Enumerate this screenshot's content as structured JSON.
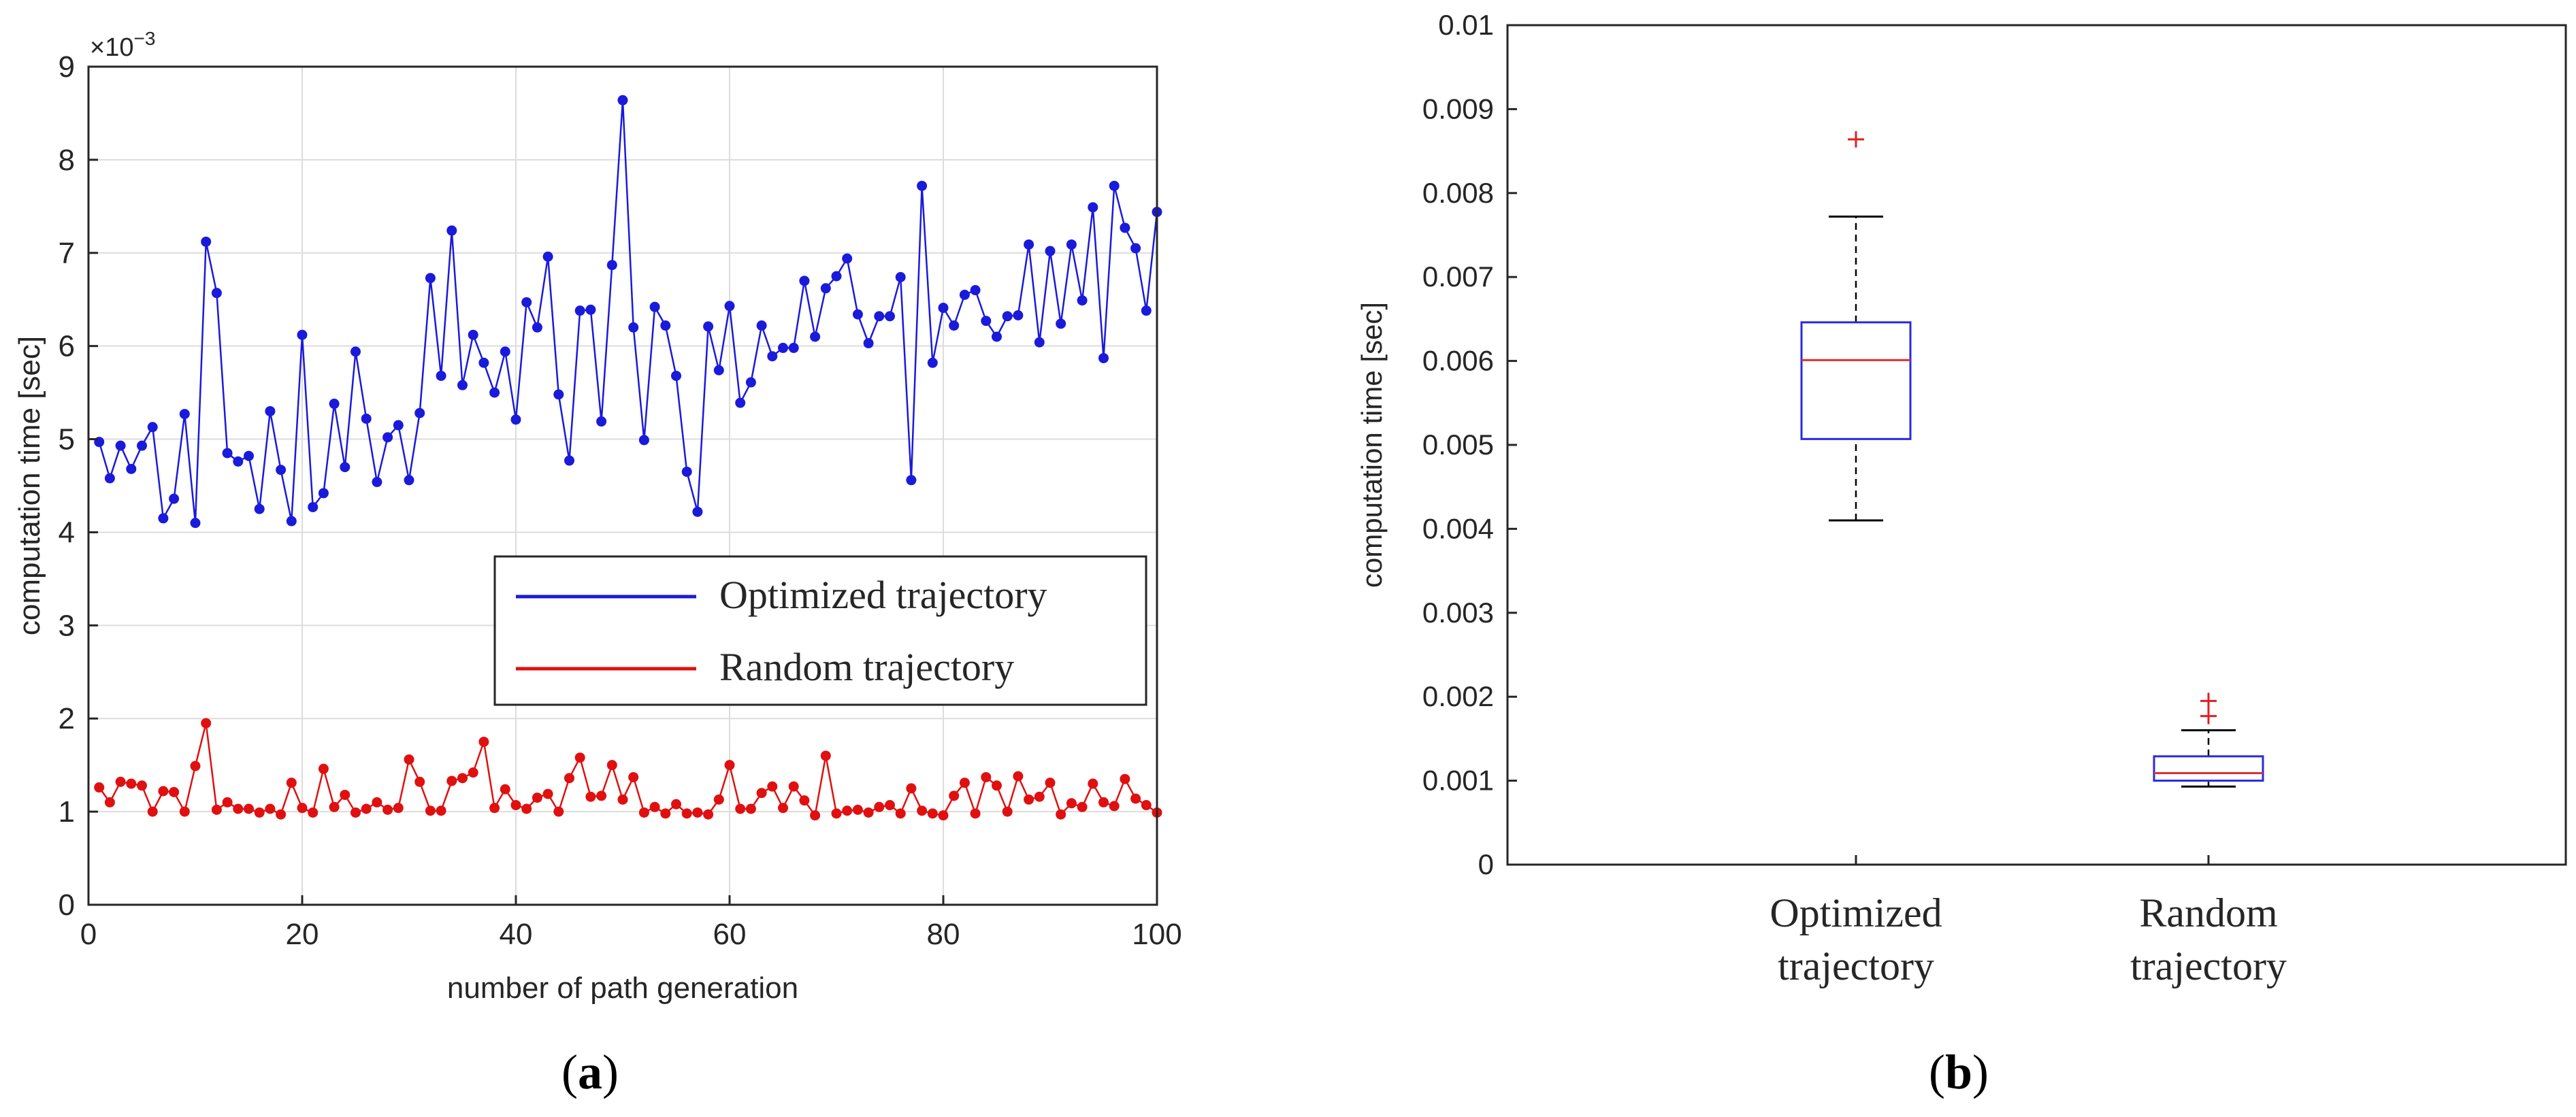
{
  "chart_data": [
    {
      "type": "line",
      "panel_label": "a",
      "xlabel": "number of path generation",
      "ylabel": "computation time [sec]",
      "y_exponent_label": "×10",
      "y_exponent_power": "−3",
      "xlim": [
        0,
        100
      ],
      "ylim": [
        0,
        9
      ],
      "xticks": [
        0,
        20,
        40,
        60,
        80,
        100
      ],
      "yticks": [
        0,
        1,
        2,
        3,
        4,
        5,
        6,
        7,
        8,
        9
      ],
      "grid": true,
      "legend_position": "right-middle",
      "x": [
        1,
        2,
        3,
        4,
        5,
        6,
        7,
        8,
        9,
        10,
        11,
        12,
        13,
        14,
        15,
        16,
        17,
        18,
        19,
        20,
        21,
        22,
        23,
        24,
        25,
        26,
        27,
        28,
        29,
        30,
        31,
        32,
        33,
        34,
        35,
        36,
        37,
        38,
        39,
        40,
        41,
        42,
        43,
        44,
        45,
        46,
        47,
        48,
        49,
        50,
        51,
        52,
        53,
        54,
        55,
        56,
        57,
        58,
        59,
        60,
        61,
        62,
        63,
        64,
        65,
        66,
        67,
        68,
        69,
        70,
        71,
        72,
        73,
        74,
        75,
        76,
        77,
        78,
        79,
        80,
        81,
        82,
        83,
        84,
        85,
        86,
        87,
        88,
        89,
        90,
        91,
        92,
        93,
        94,
        95,
        96,
        97,
        98,
        99,
        100
      ],
      "series": [
        {
          "name": "Optimized trajectory",
          "color": "#1a1adb",
          "values": [
            4.97,
            4.58,
            4.93,
            4.68,
            4.93,
            5.13,
            4.15,
            4.36,
            5.27,
            4.1,
            7.12,
            6.57,
            4.85,
            4.76,
            4.82,
            4.25,
            5.3,
            4.67,
            4.12,
            6.12,
            4.27,
            4.42,
            5.38,
            4.7,
            5.94,
            5.22,
            4.54,
            5.02,
            5.15,
            4.56,
            5.28,
            6.73,
            5.68,
            7.24,
            5.58,
            6.12,
            5.82,
            5.5,
            5.94,
            5.21,
            6.47,
            6.2,
            6.96,
            5.48,
            4.77,
            6.38,
            6.39,
            5.19,
            6.87,
            8.64,
            6.2,
            4.99,
            6.42,
            6.22,
            5.68,
            4.65,
            4.22,
            6.21,
            5.74,
            6.43,
            5.39,
            5.61,
            6.22,
            5.89,
            5.98,
            5.98,
            6.7,
            6.1,
            6.62,
            6.75,
            6.94,
            6.34,
            6.03,
            6.32,
            6.32,
            6.74,
            4.56,
            7.72,
            5.82,
            6.41,
            6.22,
            6.55,
            6.6,
            6.27,
            6.1,
            6.32,
            6.33,
            7.09,
            6.04,
            7.02,
            6.24,
            7.09,
            6.49,
            7.49,
            5.87,
            7.72,
            7.27,
            7.05,
            6.38,
            7.44
          ]
        },
        {
          "name": "Random trajectory",
          "color": "#e01010",
          "values": [
            1.26,
            1.1,
            1.32,
            1.3,
            1.28,
            1.0,
            1.22,
            1.21,
            1.0,
            1.49,
            1.95,
            1.02,
            1.1,
            1.03,
            1.03,
            0.99,
            1.03,
            0.97,
            1.31,
            1.04,
            0.99,
            1.46,
            1.05,
            1.18,
            0.99,
            1.03,
            1.1,
            1.02,
            1.04,
            1.56,
            1.32,
            1.01,
            1.01,
            1.33,
            1.36,
            1.42,
            1.75,
            1.04,
            1.24,
            1.07,
            1.03,
            1.15,
            1.19,
            1.0,
            1.36,
            1.58,
            1.16,
            1.17,
            1.5,
            1.13,
            1.37,
            0.99,
            1.05,
            0.98,
            1.08,
            0.98,
            0.99,
            0.97,
            1.13,
            1.5,
            1.03,
            1.03,
            1.2,
            1.27,
            1.04,
            1.27,
            1.12,
            0.96,
            1.6,
            0.98,
            1.01,
            1.02,
            0.99,
            1.05,
            1.07,
            0.98,
            1.25,
            1.01,
            0.98,
            0.96,
            1.17,
            1.31,
            0.98,
            1.37,
            1.28,
            1.0,
            1.38,
            1.13,
            1.16,
            1.31,
            0.97,
            1.09,
            1.05,
            1.3,
            1.1,
            1.06,
            1.35,
            1.14,
            1.07,
            0.99
          ]
        }
      ]
    },
    {
      "type": "box",
      "panel_label": "b",
      "ylabel": "computation time [sec]",
      "ylim": [
        0,
        0.01
      ],
      "yticks": [
        "0",
        "0.001",
        "0.002",
        "0.003",
        "0.004",
        "0.005",
        "0.006",
        "0.007",
        "0.008",
        "0.009",
        "0.01"
      ],
      "categories": [
        {
          "line1": "Optimized",
          "line2": "trajectory"
        },
        {
          "line1": "Random",
          "line2": "trajectory"
        }
      ],
      "boxes": [
        {
          "whisker_low": 0.0041,
          "q1": 0.00507,
          "median": 0.00601,
          "q3": 0.00646,
          "whisker_high": 0.00772,
          "outliers": [
            0.00864
          ]
        },
        {
          "whisker_low": 0.00093,
          "q1": 0.001,
          "median": 0.00109,
          "q3": 0.00129,
          "whisker_high": 0.0016,
          "outliers": [
            0.00177,
            0.00195
          ]
        }
      ],
      "box_color": "#2a2ae0",
      "median_color": "#e03030",
      "whisker_color": "#000000",
      "outlier_color": "#e02020"
    }
  ]
}
